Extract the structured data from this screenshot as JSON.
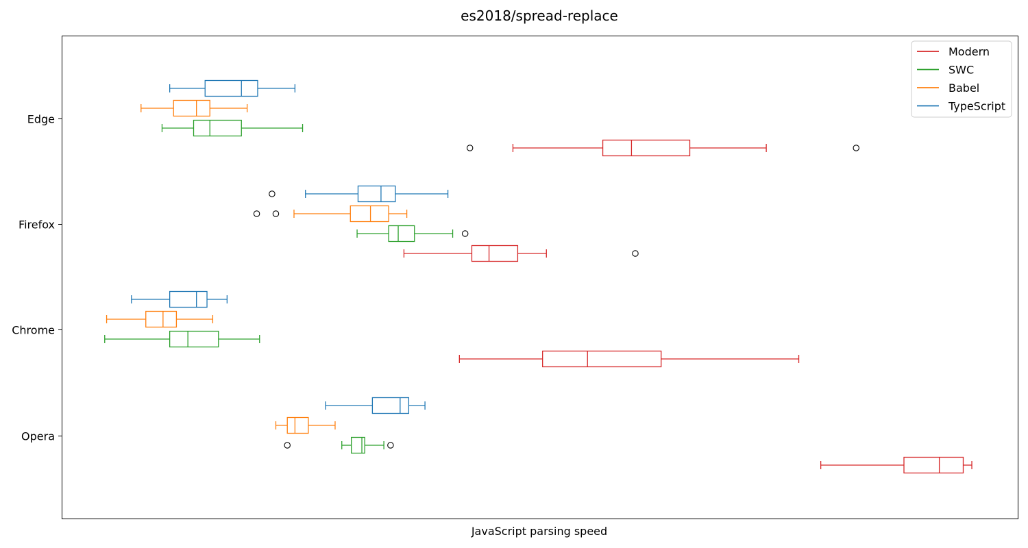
{
  "chart_data": {
    "type": "boxplot",
    "orientation": "horizontal",
    "title": "es2018/spread-replace",
    "xlabel": "JavaScript parsing speed",
    "ylabel": "",
    "x_tick_labels_shown": false,
    "xlim": [
      0,
      1000
    ],
    "categories": [
      "Edge",
      "Firefox",
      "Chrome",
      "Opera"
    ],
    "legend": {
      "location": "upper right",
      "entries": [
        "Modern",
        "SWC",
        "Babel",
        "TypeScript"
      ]
    },
    "colors": {
      "Modern": "#d62728",
      "SWC": "#2ca02c",
      "Babel": "#ff7f0e",
      "TypeScript": "#1f77b4"
    },
    "series": [
      {
        "name": "TypeScript",
        "boxes": [
          {
            "category": "Edge",
            "whislo": 113,
            "q1": 150,
            "median": 188,
            "q3": 205,
            "whishi": 244,
            "fliers": []
          },
          {
            "category": "Firefox",
            "whislo": 255,
            "q1": 310,
            "median": 334,
            "q3": 349,
            "whishi": 404,
            "fliers": [
              220
            ]
          },
          {
            "category": "Chrome",
            "whislo": 73,
            "q1": 113,
            "median": 141,
            "q3": 152,
            "whishi": 173,
            "fliers": []
          },
          {
            "category": "Opera",
            "whislo": 276,
            "q1": 325,
            "median": 354,
            "q3": 363,
            "whishi": 380,
            "fliers": []
          }
        ]
      },
      {
        "name": "Babel",
        "boxes": [
          {
            "category": "Edge",
            "whislo": 83,
            "q1": 117,
            "median": 141,
            "q3": 155,
            "whishi": 194,
            "fliers": []
          },
          {
            "category": "Firefox",
            "whislo": 243,
            "q1": 302,
            "median": 323,
            "q3": 342,
            "whishi": 361,
            "fliers": [
              204,
              224
            ]
          },
          {
            "category": "Chrome",
            "whislo": 47,
            "q1": 88,
            "median": 106,
            "q3": 120,
            "whishi": 158,
            "fliers": []
          },
          {
            "category": "Opera",
            "whislo": 224,
            "q1": 236,
            "median": 244,
            "q3": 258,
            "whishi": 286,
            "fliers": []
          }
        ]
      },
      {
        "name": "SWC",
        "boxes": [
          {
            "category": "Edge",
            "whislo": 105,
            "q1": 138,
            "median": 155,
            "q3": 188,
            "whishi": 252,
            "fliers": []
          },
          {
            "category": "Firefox",
            "whislo": 309,
            "q1": 342,
            "median": 352,
            "q3": 369,
            "whishi": 409,
            "fliers": [
              422
            ]
          },
          {
            "category": "Chrome",
            "whislo": 45,
            "q1": 113,
            "median": 132,
            "q3": 164,
            "whishi": 207,
            "fliers": []
          },
          {
            "category": "Opera",
            "whislo": 293,
            "q1": 303,
            "median": 314,
            "q3": 317,
            "whishi": 337,
            "fliers": [
              236,
              344
            ]
          }
        ]
      },
      {
        "name": "Modern",
        "boxes": [
          {
            "category": "Edge",
            "whislo": 472,
            "q1": 566,
            "median": 596,
            "q3": 657,
            "whishi": 737,
            "fliers": [
              427,
              831
            ]
          },
          {
            "category": "Firefox",
            "whislo": 358,
            "q1": 429,
            "median": 447,
            "q3": 477,
            "whishi": 507,
            "fliers": [
              600
            ]
          },
          {
            "category": "Chrome",
            "whislo": 416,
            "q1": 503,
            "median": 550,
            "q3": 627,
            "whishi": 771,
            "fliers": []
          },
          {
            "category": "Opera",
            "whislo": 794,
            "q1": 881,
            "median": 918,
            "q3": 943,
            "whishi": 952,
            "fliers": []
          }
        ]
      }
    ]
  }
}
